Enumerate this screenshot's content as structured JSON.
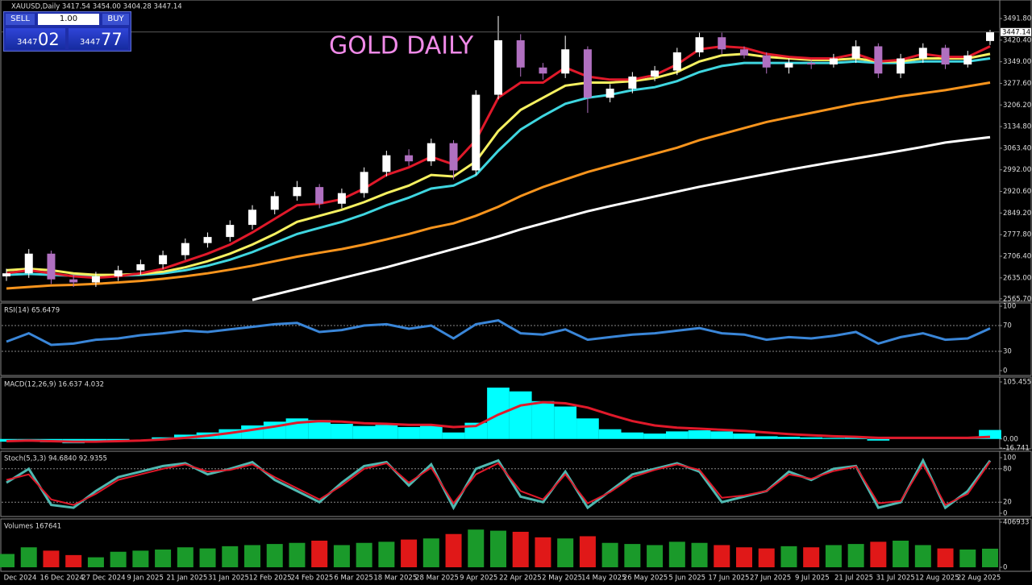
{
  "trade_panel": {
    "sell": "SELL",
    "lot": "1.00",
    "buy": "BUY",
    "sell_small": "3447",
    "sell_big": "02",
    "buy_small": "3447",
    "buy_big": "77"
  },
  "chart_data": [
    {
      "type": "candlestick",
      "title": "XAUUSD,Daily  3417.54 3454.00 3404.28 3447.14",
      "annotation": "GOLD DAILY",
      "x_labels": [
        "Dec 2024",
        "16 Dec 2024",
        "27 Dec 2024",
        "9 Jan 2025",
        "21 Jan 2025",
        "31 Jan 2025",
        "12 Feb 2025",
        "24 Feb 2025",
        "6 Mar 2025",
        "18 Mar 2025",
        "28 Mar 2025",
        "9 Apr 2025",
        "22 Apr 2025",
        "2 May 2025",
        "14 May 2025",
        "26 May 2025",
        "5 Jun 2025",
        "17 Jun 2025",
        "27 Jun 2025",
        "9 Jul 2025",
        "21 Jul 2025",
        "31 Jul 2025",
        "12 Aug 2025",
        "22 Aug 2025"
      ],
      "open": [
        2640,
        2650,
        2715,
        2630,
        2620,
        2640,
        2660,
        2680,
        2710,
        2750,
        2770,
        2810,
        2860,
        2905,
        2935,
        2880,
        2915,
        2985,
        3040,
        3020,
        3080,
        2990,
        3240,
        3420,
        3330,
        3310,
        3390,
        3230,
        3260,
        3300,
        3320,
        3380,
        3430,
        3390,
        3370,
        3330,
        3345,
        3340,
        3360,
        3400,
        3310,
        3360,
        3395,
        3340,
        3417.54
      ],
      "high": [
        2665,
        2730,
        2725,
        2645,
        2655,
        2675,
        2695,
        2725,
        2765,
        2785,
        2825,
        2875,
        2920,
        2955,
        2945,
        2930,
        3000,
        3055,
        3060,
        3095,
        3090,
        3255,
        3500,
        3440,
        3345,
        3435,
        3400,
        3275,
        3315,
        3335,
        3395,
        3445,
        3445,
        3400,
        3380,
        3360,
        3355,
        3375,
        3420,
        3410,
        3375,
        3410,
        3405,
        3385,
        3454
      ],
      "low": [
        2625,
        2635,
        2615,
        2605,
        2605,
        2625,
        2645,
        2665,
        2695,
        2735,
        2755,
        2795,
        2845,
        2890,
        2865,
        2865,
        2900,
        2970,
        3005,
        3005,
        2960,
        2975,
        3225,
        3300,
        3290,
        3295,
        3180,
        3215,
        3245,
        3285,
        3305,
        3365,
        3375,
        3360,
        3310,
        3310,
        3325,
        3330,
        3345,
        3295,
        3295,
        3345,
        3325,
        3330,
        3404.28
      ],
      "close": [
        2650,
        2715,
        2630,
        2620,
        2640,
        2660,
        2680,
        2710,
        2750,
        2770,
        2810,
        2860,
        2905,
        2935,
        2880,
        2915,
        2985,
        3040,
        3020,
        3080,
        2990,
        3240,
        3420,
        3330,
        3310,
        3390,
        3230,
        3260,
        3300,
        3320,
        3380,
        3430,
        3390,
        3370,
        3330,
        3345,
        3340,
        3360,
        3400,
        3310,
        3360,
        3395,
        3340,
        3370,
        3447.14
      ],
      "up_color": "#ffffff",
      "down_color": "#b070c0",
      "series": [
        {
          "color": "#f7941d",
          "width": 3,
          "values": [
            2600,
            2605,
            2610,
            2612,
            2615,
            2620,
            2625,
            2632,
            2640,
            2650,
            2662,
            2675,
            2690,
            2705,
            2718,
            2730,
            2745,
            2762,
            2780,
            2800,
            2815,
            2840,
            2870,
            2905,
            2935,
            2960,
            2985,
            3005,
            3025,
            3045,
            3065,
            3090,
            3110,
            3130,
            3150,
            3165,
            3180,
            3195,
            3210,
            3222,
            3235,
            3245,
            3255,
            3268,
            3280
          ]
        },
        {
          "color": "#ffffff",
          "width": 3,
          "values": [
            null,
            null,
            null,
            null,
            null,
            null,
            null,
            null,
            null,
            null,
            null,
            2562,
            2580,
            2598,
            2616,
            2634,
            2652,
            2670,
            2690,
            2710,
            2730,
            2750,
            2772,
            2795,
            2815,
            2835,
            2855,
            2872,
            2888,
            2904,
            2920,
            2936,
            2950,
            2964,
            2978,
            2992,
            3005,
            3018,
            3030,
            3042,
            3055,
            3068,
            3082,
            3091,
            3100
          ]
        },
        {
          "color": "#3fd6e0",
          "width": 3,
          "values": [
            2645,
            2648,
            2645,
            2642,
            2640,
            2642,
            2645,
            2650,
            2660,
            2675,
            2695,
            2720,
            2750,
            2780,
            2800,
            2820,
            2845,
            2875,
            2900,
            2930,
            2940,
            2975,
            3055,
            3125,
            3170,
            3210,
            3230,
            3240,
            3255,
            3265,
            3285,
            3315,
            3335,
            3345,
            3345,
            3345,
            3345,
            3345,
            3350,
            3345,
            3345,
            3350,
            3350,
            3350,
            3360
          ]
        },
        {
          "color": "#f5f060",
          "width": 3,
          "values": [
            2660,
            2665,
            2660,
            2650,
            2645,
            2645,
            2648,
            2655,
            2670,
            2690,
            2715,
            2745,
            2780,
            2820,
            2840,
            2860,
            2885,
            2915,
            2940,
            2975,
            2970,
            3020,
            3120,
            3190,
            3230,
            3270,
            3280,
            3280,
            3285,
            3295,
            3315,
            3350,
            3370,
            3375,
            3365,
            3360,
            3355,
            3355,
            3360,
            3350,
            3350,
            3360,
            3360,
            3360,
            3375
          ]
        },
        {
          "color": "#e0192a",
          "width": 3,
          "values": [
            2650,
            2660,
            2650,
            2640,
            2635,
            2640,
            2650,
            2665,
            2690,
            2715,
            2745,
            2785,
            2830,
            2875,
            2880,
            2895,
            2930,
            2975,
            3000,
            3035,
            3010,
            3090,
            3230,
            3280,
            3280,
            3330,
            3300,
            3290,
            3290,
            3305,
            3340,
            3390,
            3400,
            3395,
            3375,
            3365,
            3360,
            3360,
            3375,
            3350,
            3355,
            3375,
            3365,
            3365,
            3400
          ]
        }
      ],
      "ylim": [
        2560,
        3553
      ],
      "yticks": [
        {
          "value": 3491.8,
          "label": "3491.80"
        },
        {
          "value": 3420.4,
          "label": "3420.40"
        },
        {
          "value": 3349,
          "label": "3349.00"
        },
        {
          "value": 3277.6,
          "label": "3277.60"
        },
        {
          "value": 3206.2,
          "label": "3206.20"
        },
        {
          "value": 3134.8,
          "label": "3134.80"
        },
        {
          "value": 3063.4,
          "label": "3063.40"
        },
        {
          "value": 2992,
          "label": "2992.00"
        },
        {
          "value": 2920.6,
          "label": "2920.60"
        },
        {
          "value": 2849.2,
          "label": "2849.20"
        },
        {
          "value": 2777.8,
          "label": "2777.80"
        },
        {
          "value": 2706.4,
          "label": "2706.40"
        },
        {
          "value": 2635,
          "label": "2635.00"
        },
        {
          "value": 2565.7,
          "label": "2565.70"
        }
      ]
    },
    {
      "type": "line",
      "title": "RSI(14) 65.6479",
      "ylim": [
        0,
        100
      ],
      "yticks": [
        100,
        70,
        30,
        0
      ],
      "levels": [
        70,
        30
      ],
      "series": [
        {
          "color": "#3a86d8",
          "width": 3,
          "values": [
            45,
            58,
            40,
            42,
            48,
            50,
            55,
            58,
            62,
            60,
            64,
            68,
            72,
            74,
            60,
            63,
            70,
            72,
            65,
            70,
            50,
            72,
            78,
            58,
            56,
            64,
            48,
            52,
            56,
            58,
            62,
            66,
            58,
            56,
            48,
            52,
            50,
            54,
            60,
            42,
            52,
            58,
            48,
            50,
            65.6479
          ]
        }
      ]
    },
    {
      "type": "macd",
      "title": "MACD(12,26,9) 16.637 4.032",
      "ylim": [
        -16.741,
        105.455
      ],
      "yticks": [
        105.455,
        {
          "value": 0,
          "label": "0.00"
        },
        -16.741
      ],
      "histogram": {
        "color": "#00ffff",
        "values": [
          -5,
          -2,
          -6,
          -8,
          -6,
          -3,
          0,
          3,
          8,
          12,
          18,
          25,
          32,
          38,
          35,
          28,
          24,
          26,
          22,
          25,
          12,
          30,
          95,
          88,
          70,
          60,
          38,
          18,
          12,
          10,
          14,
          16,
          14,
          10,
          5,
          4,
          3,
          2,
          4,
          -3,
          2,
          4,
          2,
          3,
          16.637
        ]
      },
      "series": [
        {
          "color": "#e0192a",
          "width": 3,
          "values": [
            -4,
            -3,
            -4,
            -5,
            -5,
            -4,
            -3,
            -1,
            2,
            6,
            11,
            17,
            23,
            30,
            33,
            32,
            29,
            28,
            26,
            26,
            22,
            24,
            45,
            62,
            68,
            66,
            58,
            45,
            33,
            25,
            21,
            19,
            17,
            15,
            12,
            9,
            7,
            5,
            4,
            2,
            2,
            2,
            2,
            2,
            4.032
          ]
        }
      ]
    },
    {
      "type": "line",
      "title": "Stoch(5,3,3) 94.6840 92.9355",
      "ylim": [
        0,
        100
      ],
      "yticks": [
        100,
        80,
        20,
        0
      ],
      "levels": [
        80,
        20
      ],
      "series": [
        {
          "color": "#4fb8b0",
          "width": 3,
          "values": [
            55,
            80,
            15,
            10,
            40,
            65,
            75,
            85,
            90,
            70,
            80,
            92,
            60,
            40,
            20,
            55,
            85,
            92,
            50,
            88,
            10,
            80,
            95,
            30,
            20,
            75,
            10,
            40,
            70,
            80,
            90,
            75,
            20,
            30,
            40,
            75,
            60,
            80,
            85,
            10,
            20,
            95,
            10,
            40,
            94.684
          ]
        },
        {
          "color": "#e0192a",
          "width": 2,
          "values": [
            60,
            70,
            25,
            15,
            35,
            60,
            70,
            80,
            88,
            75,
            78,
            88,
            65,
            45,
            25,
            50,
            80,
            90,
            55,
            82,
            18,
            70,
            90,
            40,
            25,
            70,
            18,
            38,
            65,
            78,
            88,
            78,
            28,
            32,
            40,
            70,
            62,
            76,
            84,
            18,
            22,
            88,
            15,
            35,
            92.9355
          ]
        }
      ]
    },
    {
      "type": "volume",
      "title": "Volumes 167641",
      "ylim": [
        0,
        406933
      ],
      "yticks": [
        406933,
        0
      ],
      "up_color": "#1a9a2a",
      "down_color": "#e01818",
      "values": [
        120000,
        180000,
        150000,
        110000,
        90000,
        140000,
        150000,
        160000,
        180000,
        170000,
        190000,
        200000,
        210000,
        220000,
        240000,
        200000,
        220000,
        230000,
        250000,
        260000,
        300000,
        340000,
        330000,
        320000,
        270000,
        260000,
        280000,
        220000,
        210000,
        200000,
        230000,
        220000,
        200000,
        180000,
        170000,
        190000,
        180000,
        200000,
        210000,
        230000,
        240000,
        200000,
        170000,
        160000,
        167641
      ]
    }
  ]
}
